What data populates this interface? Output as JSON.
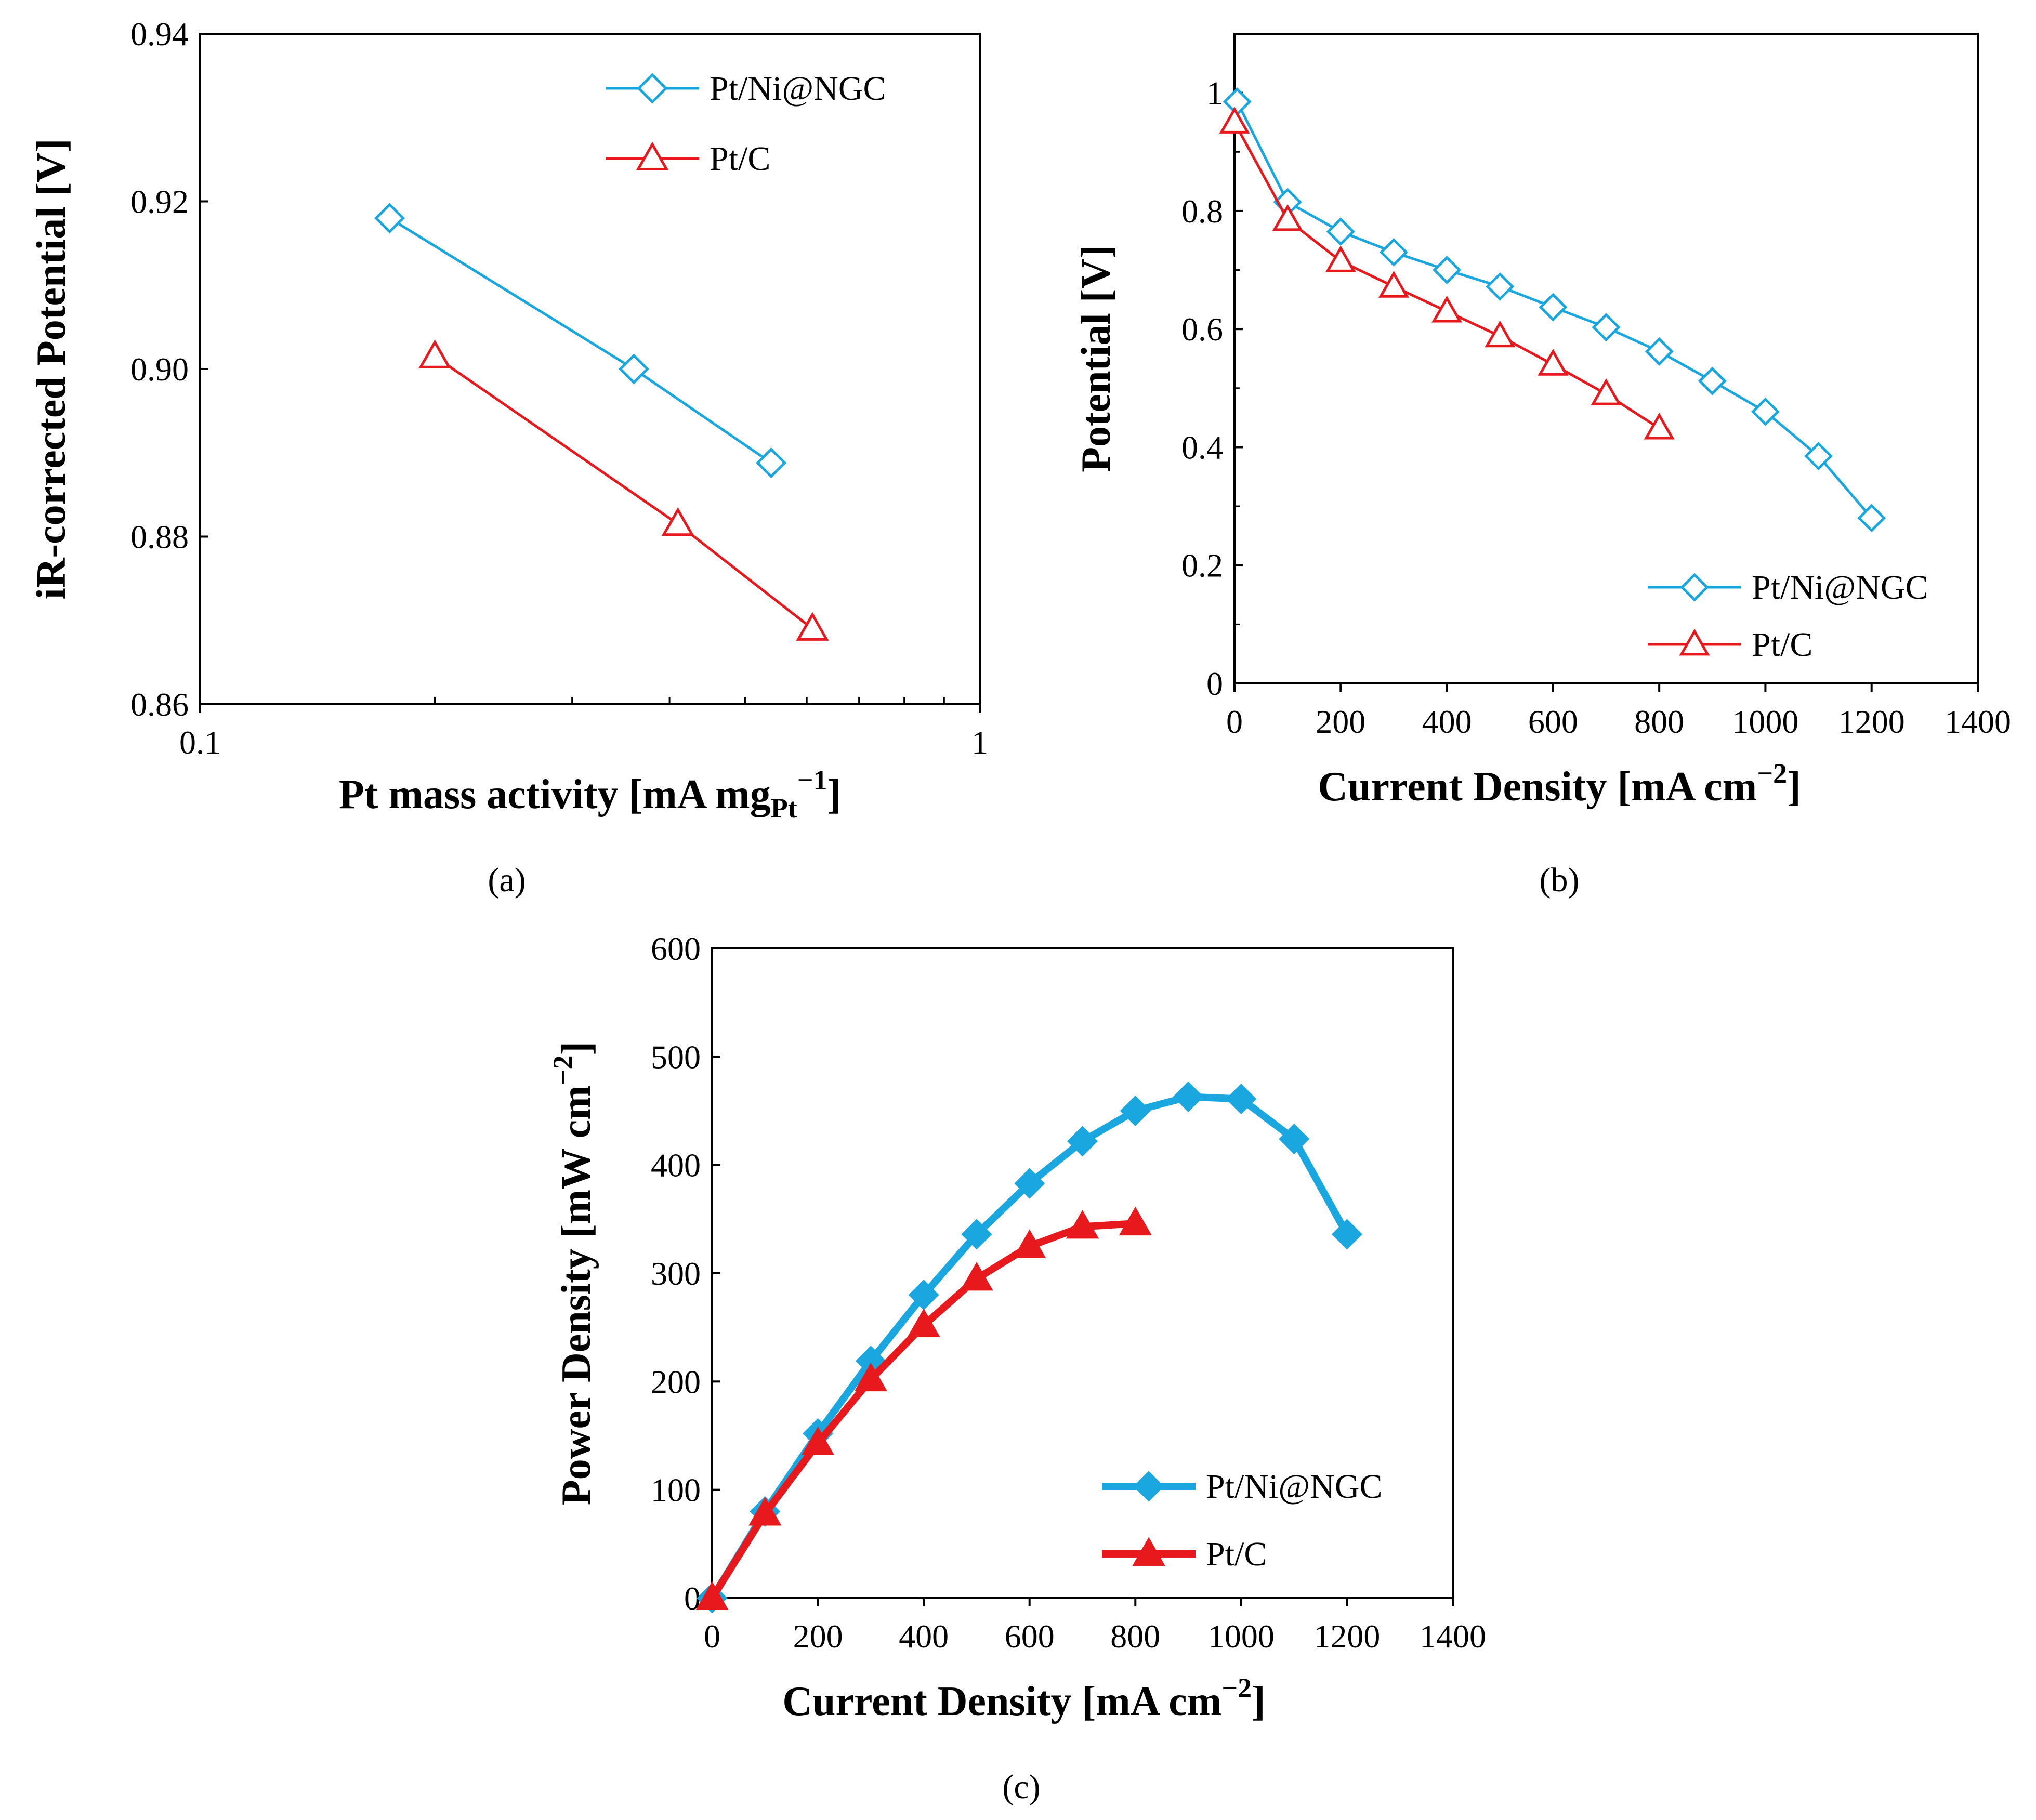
{
  "colors": {
    "blue": "#1aa7e0",
    "red": "#e8191c"
  },
  "chart_data": [
    {
      "id": "a",
      "type": "line",
      "caption": "(a)",
      "title": "",
      "xscale": "log",
      "xlabel_main": "Pt mass activity  [mA mg",
      "xlabel_sub": "Pt",
      "xlabel_sup": "−1",
      "xlabel_end": "]",
      "ylabel": "iR-corrected Potential [V]",
      "xlim": [
        0.1,
        1
      ],
      "ylim": [
        0.86,
        0.94
      ],
      "xticks": [
        {
          "v": 0.1,
          "label": "0.1"
        },
        {
          "v": 1,
          "label": "1"
        }
      ],
      "yticks": [
        {
          "v": 0.86,
          "label": "0.86"
        },
        {
          "v": 0.88,
          "label": "0.88"
        },
        {
          "v": 0.9,
          "label": "0.90"
        },
        {
          "v": 0.92,
          "label": "0.92"
        },
        {
          "v": 0.94,
          "label": "0.94"
        }
      ],
      "legend_position": "top-right",
      "series": [
        {
          "name": "Pt/Ni@NGC",
          "color": "blue",
          "marker": "diamond-open",
          "x": [
            0.175,
            0.36,
            0.54
          ],
          "y": [
            0.918,
            0.9,
            0.8888
          ]
        },
        {
          "name": "Pt/C",
          "color": "red",
          "marker": "triangle-open",
          "x": [
            0.2,
            0.41,
            0.61
          ],
          "y": [
            0.9015,
            0.8815,
            0.869
          ]
        }
      ]
    },
    {
      "id": "b",
      "type": "line",
      "caption": "(b)",
      "title": "",
      "xscale": "linear",
      "xlabel": "Current Density [mA cm",
      "xlabel_sup": "−2",
      "xlabel_end": "]",
      "ylabel": "Potential [V]",
      "xlim": [
        0,
        1400
      ],
      "ylim": [
        0,
        1.1
      ],
      "xticks": [
        {
          "v": 0,
          "label": "0"
        },
        {
          "v": 200,
          "label": "200"
        },
        {
          "v": 400,
          "label": "400"
        },
        {
          "v": 600,
          "label": "600"
        },
        {
          "v": 800,
          "label": "800"
        },
        {
          "v": 1000,
          "label": "1000"
        },
        {
          "v": 1200,
          "label": "1200"
        },
        {
          "v": 1400,
          "label": "1400"
        }
      ],
      "yticks": [
        {
          "v": 0,
          "label": "0"
        },
        {
          "v": 0.2,
          "label": "0.2"
        },
        {
          "v": 0.4,
          "label": "0.4"
        },
        {
          "v": 0.6,
          "label": "0.6"
        },
        {
          "v": 0.8,
          "label": "0.8"
        },
        {
          "v": 1,
          "label": "1"
        }
      ],
      "legend_position": "bottom-right",
      "series": [
        {
          "name": "Pt/Ni@NGC",
          "color": "blue",
          "marker": "diamond-open",
          "x": [
            5,
            100,
            200,
            300,
            400,
            500,
            600,
            700,
            800,
            900,
            1000,
            1100,
            1200
          ],
          "y": [
            0.985,
            0.815,
            0.765,
            0.73,
            0.7,
            0.672,
            0.637,
            0.603,
            0.562,
            0.512,
            0.46,
            0.385,
            0.28
          ]
        },
        {
          "name": "Pt/C",
          "color": "red",
          "marker": "triangle-open",
          "x": [
            0,
            100,
            200,
            300,
            400,
            500,
            600,
            700,
            800
          ],
          "y": [
            0.95,
            0.785,
            0.715,
            0.672,
            0.63,
            0.588,
            0.54,
            0.49,
            0.432
          ]
        }
      ]
    },
    {
      "id": "c",
      "type": "line",
      "caption": "(c)",
      "title": "",
      "xscale": "linear",
      "xlabel": "Current Density [mA cm",
      "xlabel_sup": "−2",
      "xlabel_end": "]",
      "ylabel": "Power Density [mW cm",
      "ylabel_sup": "−2",
      "ylabel_end": "]",
      "xlim": [
        0,
        1400
      ],
      "ylim": [
        0,
        600
      ],
      "xticks": [
        {
          "v": 0,
          "label": "0"
        },
        {
          "v": 200,
          "label": "200"
        },
        {
          "v": 400,
          "label": "400"
        },
        {
          "v": 600,
          "label": "600"
        },
        {
          "v": 800,
          "label": "800"
        },
        {
          "v": 1000,
          "label": "1000"
        },
        {
          "v": 1200,
          "label": "1200"
        },
        {
          "v": 1400,
          "label": "1400"
        }
      ],
      "yticks": [
        {
          "v": 0,
          "label": "0"
        },
        {
          "v": 100,
          "label": "100"
        },
        {
          "v": 200,
          "label": "200"
        },
        {
          "v": 300,
          "label": "300"
        },
        {
          "v": 400,
          "label": "400"
        },
        {
          "v": 500,
          "label": "500"
        },
        {
          "v": 600,
          "label": "600"
        }
      ],
      "legend_position": "bottom-right",
      "series": [
        {
          "name": "Pt/Ni@NGC",
          "color": "blue",
          "marker": "diamond-filled",
          "x": [
            0,
            100,
            200,
            300,
            400,
            500,
            600,
            700,
            800,
            900,
            1000,
            1100,
            1200
          ],
          "y": [
            0,
            80,
            152,
            219,
            280,
            336,
            383,
            422,
            450,
            463,
            461,
            424,
            336
          ]
        },
        {
          "name": "Pt/C",
          "color": "red",
          "marker": "triangle-filled",
          "x": [
            0,
            100,
            200,
            300,
            400,
            500,
            600,
            700,
            800
          ],
          "y": [
            0,
            78,
            143,
            202,
            252,
            295,
            325,
            343,
            346
          ]
        }
      ]
    }
  ]
}
